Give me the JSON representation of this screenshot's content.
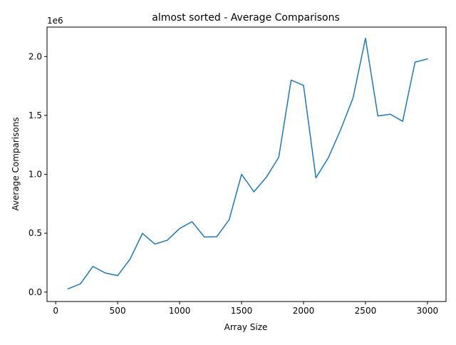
{
  "chart_data": {
    "type": "line",
    "title": "almost sorted - Average Comparisons",
    "xlabel": "Array Size",
    "ylabel": "Average Comparisons",
    "y_offset_label": "1e6",
    "xlim": [
      -70,
      3150
    ],
    "ylim": [
      -80000,
      2250000
    ],
    "x_ticks": [
      {
        "value": 0,
        "label": "0"
      },
      {
        "value": 500,
        "label": "500"
      },
      {
        "value": 1000,
        "label": "1000"
      },
      {
        "value": 1500,
        "label": "1500"
      },
      {
        "value": 2000,
        "label": "2000"
      },
      {
        "value": 2500,
        "label": "2500"
      },
      {
        "value": 3000,
        "label": "3000"
      }
    ],
    "y_ticks": [
      {
        "value": 0,
        "label": "0.0"
      },
      {
        "value": 500000,
        "label": "0.5"
      },
      {
        "value": 1000000,
        "label": "1.0"
      },
      {
        "value": 1500000,
        "label": "1.5"
      },
      {
        "value": 2000000,
        "label": "2.0"
      }
    ],
    "grid": false,
    "series": [
      {
        "color": "#1f77b4",
        "x": [
          100,
          200,
          300,
          400,
          500,
          600,
          700,
          800,
          900,
          1000,
          1100,
          1200,
          1300,
          1400,
          1500,
          1600,
          1700,
          1800,
          1900,
          2000,
          2100,
          2200,
          2300,
          2400,
          2500,
          2600,
          2700,
          2800,
          2900,
          3000
        ],
        "y": [
          28000,
          70000,
          218000,
          162000,
          140000,
          280000,
          498000,
          408000,
          440000,
          540000,
          598000,
          468000,
          470000,
          615000,
          1000000,
          852000,
          975000,
          1145000,
          1800000,
          1755000,
          970000,
          1140000,
          1380000,
          1650000,
          2155000,
          1495000,
          1510000,
          1450000,
          1952000,
          1980000
        ]
      }
    ]
  }
}
